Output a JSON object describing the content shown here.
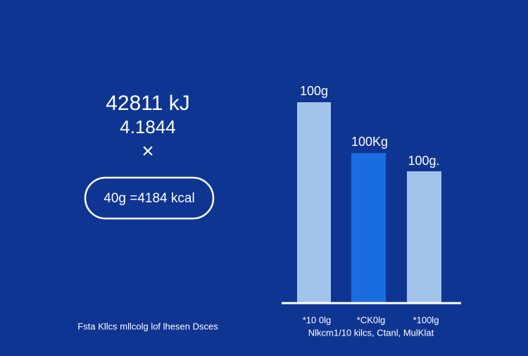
{
  "left": {
    "energy": "42811 kJ",
    "factor": "4.1844",
    "operator": "×",
    "pill": "40g =4184 kcal",
    "footnote": "Fsta Kllcs mllcolg  lof lhesen Dsces"
  },
  "bars": [
    {
      "label": "100g",
      "category": "*10 0lg"
    },
    {
      "label": "100Kg",
      "category": "*CK0lg"
    },
    {
      "label": "100g.",
      "category": "*100lg"
    }
  ],
  "caption": "Nlkcm1/10 kilcs, Ctanl, MulKlat"
}
